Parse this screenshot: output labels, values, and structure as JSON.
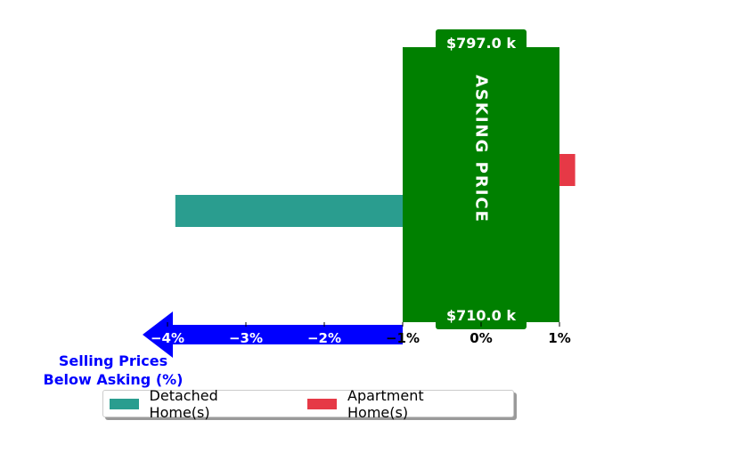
{
  "chart_data": {
    "type": "bar",
    "orientation": "horizontal",
    "series": [
      {
        "name": "Detached Home(s)",
        "value": -3.9,
        "color": "#2a9d8f"
      },
      {
        "name": "Apartment Home(s)",
        "value": 1.2,
        "color": "#e63946"
      }
    ],
    "x_ticks": [
      "−4%",
      "−3%",
      "−2%",
      "−1%",
      "0%",
      "1%"
    ],
    "x_tick_values": [
      -4,
      -3,
      -2,
      -1,
      0,
      1
    ],
    "xlim": [
      -4.75,
      1.9
    ],
    "band": {
      "label": "ASKING PRICE",
      "x_range": [
        -1,
        1
      ],
      "color": "#008000",
      "top_label": "$797.0 k",
      "bottom_label": "$710.0 k"
    },
    "arrow": {
      "label_line1": "Selling Prices",
      "label_line2": "Below Asking (%)",
      "color": "#0000ff",
      "x_from": -1,
      "x_to": -4.75
    },
    "legend_placement": "bottom-left",
    "grid": false
  }
}
